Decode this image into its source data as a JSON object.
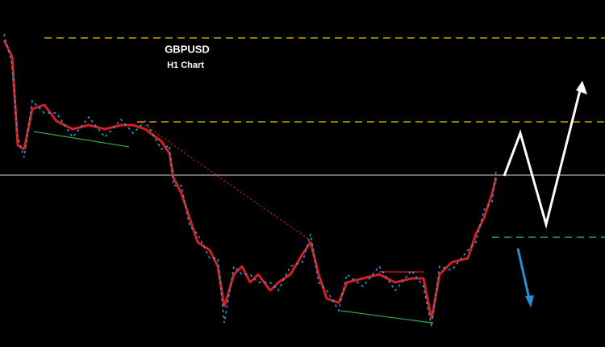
{
  "chart_data": {
    "type": "candlestick",
    "title": "GBPUSD",
    "subtitle": "H1 Chart"
  }
}
